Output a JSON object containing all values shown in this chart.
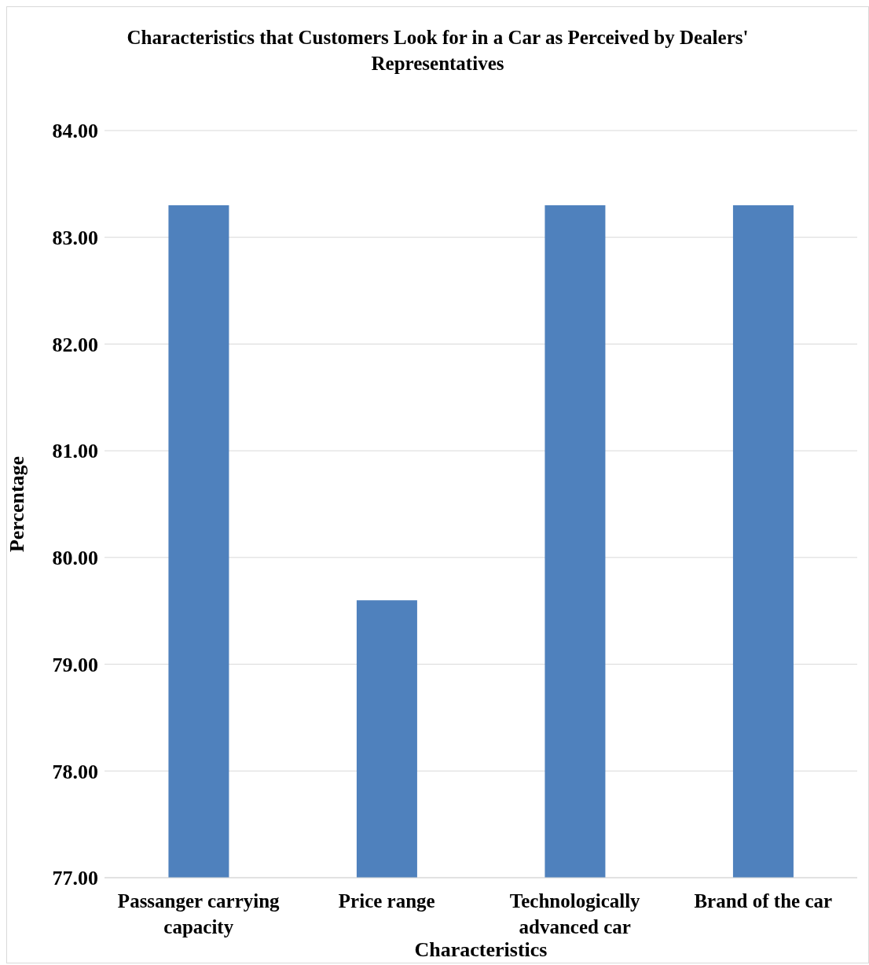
{
  "chart_data": {
    "type": "bar",
    "title": "Characteristics that Customers Look for in a Car as Perceived by Dealers' Representatives",
    "xlabel": "Characteristics",
    "ylabel": "Percentage",
    "categories": [
      "Passanger carrying capacity",
      "Price range",
      "Technologically advanced car",
      "Brand of the car"
    ],
    "values": [
      83.3,
      79.6,
      83.3,
      83.3
    ],
    "color": "#4f81bd",
    "ylim": [
      77,
      84
    ],
    "yticks": [
      {
        "value": 77,
        "label": "77.00"
      },
      {
        "value": 78,
        "label": "78.00"
      },
      {
        "value": 79,
        "label": "79.00"
      },
      {
        "value": 80,
        "label": "80.00"
      },
      {
        "value": 81,
        "label": "81.00"
      },
      {
        "value": 82,
        "label": "82.00"
      },
      {
        "value": 83,
        "label": "83.00"
      },
      {
        "value": 84,
        "label": "84.00"
      }
    ],
    "grid": "y",
    "legend": false
  }
}
